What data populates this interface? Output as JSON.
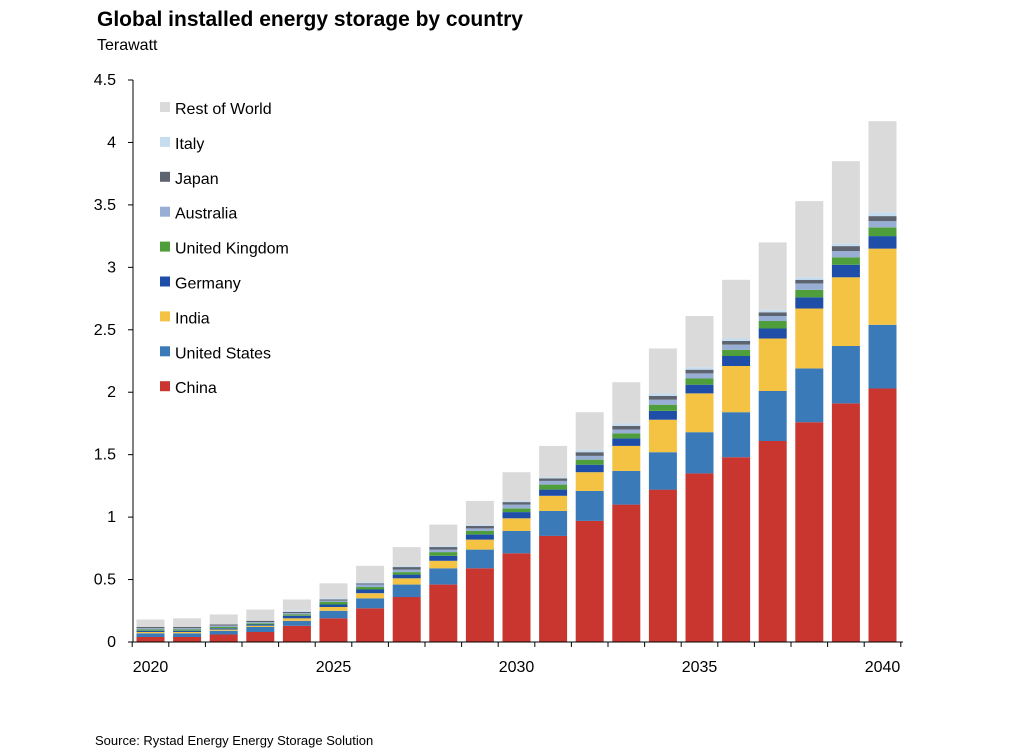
{
  "title": "Global installed energy storage by country",
  "subtitle": "Terawatt",
  "source": "Source: Rystad Energy Energy Storage Solution",
  "chart_data": {
    "type": "bar",
    "stacked": true,
    "title": "Global installed energy storage by country",
    "ylabel": "Terawatt",
    "xlabel": "",
    "ylim": [
      0,
      4.5
    ],
    "yticks": [
      0,
      0.5,
      1,
      1.5,
      2,
      2.5,
      3,
      3.5,
      4,
      4.5
    ],
    "ytick_labels": [
      "0",
      "0.5",
      "1",
      "1.5",
      "2",
      "2.5",
      "3",
      "3.5",
      "4",
      "4.5"
    ],
    "xtick_labels": [
      "2020",
      "2025",
      "2030",
      "2035",
      "2040"
    ],
    "categories": [
      2020,
      2021,
      2022,
      2023,
      2024,
      2025,
      2026,
      2027,
      2028,
      2029,
      2030,
      2031,
      2032,
      2033,
      2034,
      2035,
      2036,
      2037,
      2038,
      2039,
      2040
    ],
    "grid": false,
    "legend_position": "top-left",
    "series": [
      {
        "name": "China",
        "color": "#C8362F",
        "values": [
          0.04,
          0.04,
          0.06,
          0.08,
          0.13,
          0.19,
          0.27,
          0.36,
          0.46,
          0.59,
          0.71,
          0.85,
          0.97,
          1.1,
          1.22,
          1.35,
          1.48,
          1.61,
          1.76,
          1.91,
          2.03
        ]
      },
      {
        "name": "United States",
        "color": "#3B7AB8",
        "values": [
          0.03,
          0.03,
          0.03,
          0.04,
          0.04,
          0.06,
          0.08,
          0.1,
          0.13,
          0.15,
          0.18,
          0.2,
          0.24,
          0.27,
          0.3,
          0.33,
          0.36,
          0.4,
          0.43,
          0.46,
          0.51
        ]
      },
      {
        "name": "India",
        "color": "#F5C344",
        "values": [
          0.01,
          0.01,
          0.01,
          0.01,
          0.02,
          0.03,
          0.04,
          0.05,
          0.06,
          0.08,
          0.1,
          0.12,
          0.15,
          0.2,
          0.26,
          0.31,
          0.37,
          0.42,
          0.48,
          0.55,
          0.61
        ]
      },
      {
        "name": "Germany",
        "color": "#1F4EA8",
        "values": [
          0.01,
          0.01,
          0.01,
          0.01,
          0.02,
          0.02,
          0.03,
          0.03,
          0.04,
          0.04,
          0.05,
          0.05,
          0.06,
          0.06,
          0.07,
          0.07,
          0.08,
          0.08,
          0.09,
          0.1,
          0.1
        ]
      },
      {
        "name": "United Kingdom",
        "color": "#4E9E3C",
        "values": [
          0.01,
          0.01,
          0.01,
          0.01,
          0.01,
          0.02,
          0.02,
          0.02,
          0.03,
          0.03,
          0.03,
          0.04,
          0.04,
          0.04,
          0.05,
          0.05,
          0.05,
          0.06,
          0.06,
          0.06,
          0.07
        ]
      },
      {
        "name": "Australia",
        "color": "#98AED4",
        "values": [
          0.01,
          0.01,
          0.01,
          0.01,
          0.01,
          0.01,
          0.02,
          0.02,
          0.02,
          0.02,
          0.03,
          0.03,
          0.03,
          0.03,
          0.04,
          0.04,
          0.04,
          0.04,
          0.05,
          0.05,
          0.05
        ]
      },
      {
        "name": "Japan",
        "color": "#5D6470",
        "values": [
          0.01,
          0.01,
          0.01,
          0.01,
          0.01,
          0.01,
          0.01,
          0.02,
          0.02,
          0.02,
          0.02,
          0.02,
          0.03,
          0.03,
          0.03,
          0.03,
          0.03,
          0.03,
          0.03,
          0.04,
          0.04
        ]
      },
      {
        "name": "Italy",
        "color": "#C6DDF0",
        "values": [
          0.0,
          0.0,
          0.0,
          0.0,
          0.01,
          0.01,
          0.01,
          0.01,
          0.01,
          0.01,
          0.01,
          0.01,
          0.02,
          0.02,
          0.02,
          0.02,
          0.02,
          0.02,
          0.02,
          0.02,
          0.03
        ]
      },
      {
        "name": "Rest of World",
        "color": "#DADADA",
        "values": [
          0.06,
          0.07,
          0.08,
          0.09,
          0.09,
          0.12,
          0.13,
          0.15,
          0.17,
          0.19,
          0.23,
          0.25,
          0.3,
          0.33,
          0.36,
          0.41,
          0.47,
          0.54,
          0.61,
          0.66,
          0.73
        ]
      }
    ]
  }
}
